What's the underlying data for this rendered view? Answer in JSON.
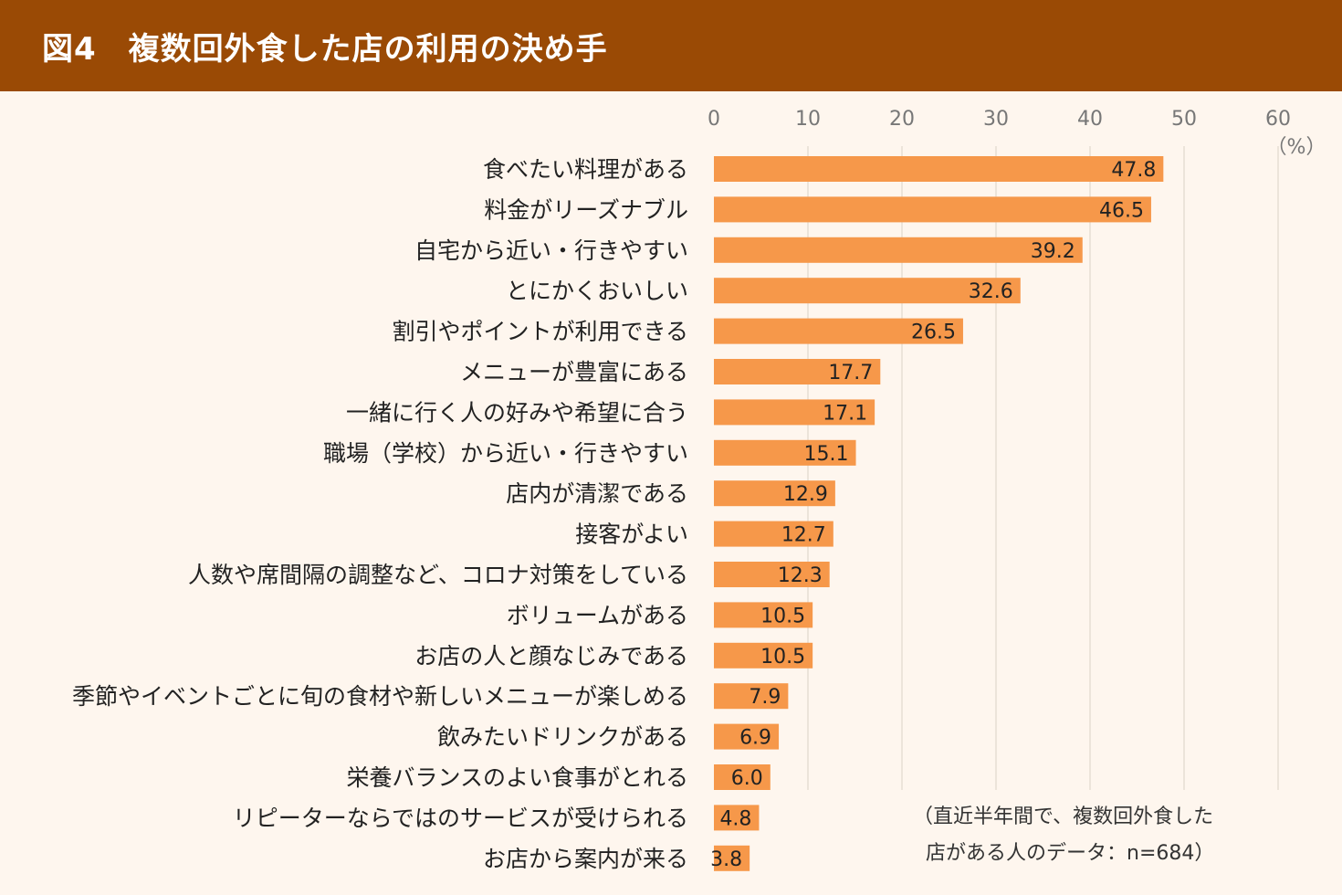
{
  "header": {
    "title": "図4　複数回外食した店の利用の決め手"
  },
  "note": {
    "line1": "（直近半年間で、複数回外食した",
    "line2": "店がある人のデータ：n=684）"
  },
  "colors": {
    "header_bg": "#9a4a05",
    "bar": "#f6984a",
    "background": "#fef6ee",
    "grid": "#e6ddd4"
  },
  "chart_data": {
    "type": "bar",
    "orientation": "horizontal",
    "title": "図4　複数回外食した店の利用の決め手",
    "unit_label": "（%）",
    "xlim": [
      0,
      60
    ],
    "ticks": [
      0,
      10,
      20,
      30,
      40,
      50,
      60
    ],
    "grid": true,
    "categories": [
      "食べたい料理がある",
      "料金がリーズナブル",
      "自宅から近い・行きやすい",
      "とにかくおいしい",
      "割引やポイントが利用できる",
      "メニューが豊富にある",
      "一緒に行く人の好みや希望に合う",
      "職場（学校）から近い・行きやすい",
      "店内が清潔である",
      "接客がよい",
      "人数や席間隔の調整など、コロナ対策をしている",
      "ボリュームがある",
      "お店の人と顔なじみである",
      "季節やイベントごとに旬の食材や新しいメニューが楽しめる",
      "飲みたいドリンクがある",
      "栄養バランスのよい食事がとれる",
      "リピーターならではのサービスが受けられる",
      "お店から案内が来る"
    ],
    "values": [
      47.8,
      46.5,
      39.2,
      32.6,
      26.5,
      17.7,
      17.1,
      15.1,
      12.9,
      12.7,
      12.3,
      10.5,
      10.5,
      7.9,
      6.9,
      6.0,
      4.8,
      3.8
    ],
    "value_labels": [
      "47.8",
      "46.5",
      "39.2",
      "32.6",
      "26.5",
      "17.7",
      "17.1",
      "15.1",
      "12.9",
      "12.7",
      "12.3",
      "10.5",
      "10.5",
      "7.9",
      "6.9",
      "6.0",
      "4.8",
      "3.8"
    ]
  }
}
